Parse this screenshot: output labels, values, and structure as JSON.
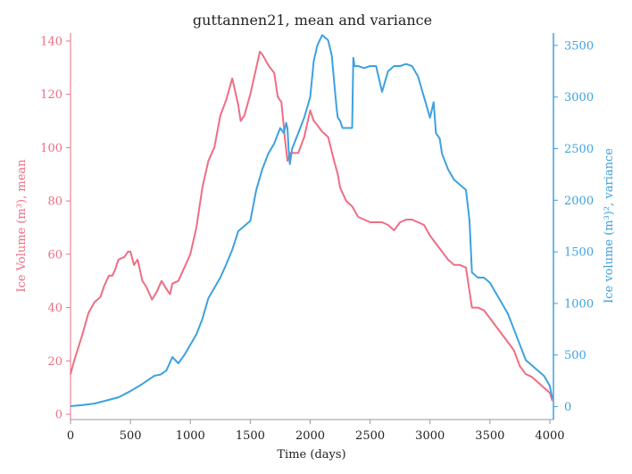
{
  "chart_data": {
    "type": "line",
    "title": "guttannen21, mean and variance",
    "xlabel": "Time (days)",
    "ylabel_left": "Ice Volume (m³), mean",
    "ylabel_right": "Ice volume (m³)², variance",
    "xlim": [
      0,
      4030
    ],
    "ylim_left": [
      -2,
      143
    ],
    "ylim_right": [
      -125,
      3620
    ],
    "x_ticks": [
      0,
      500,
      1000,
      1500,
      2000,
      2500,
      3000,
      3500,
      4000
    ],
    "y_ticks_left": [
      0,
      20,
      40,
      60,
      80,
      100,
      120,
      140
    ],
    "y_ticks_right": [
      0,
      500,
      1000,
      1500,
      2000,
      2500,
      3000,
      3500
    ],
    "grid": false,
    "colors": {
      "mean": "#ee6e84",
      "variance": "#3da1e0",
      "axis": "#999999",
      "text": "#222222"
    },
    "series": [
      {
        "axis": "left",
        "x": [
          0,
          30,
          100,
          150,
          200,
          250,
          280,
          320,
          350,
          370,
          400,
          450,
          480,
          500,
          530,
          560,
          600,
          630,
          680,
          720,
          760,
          800,
          830,
          850,
          900,
          950,
          1000,
          1050,
          1100,
          1150,
          1200,
          1250,
          1300,
          1350,
          1400,
          1420,
          1450,
          1500,
          1550,
          1580,
          1600,
          1650,
          1700,
          1730,
          1760,
          1790,
          1810,
          1830,
          1850,
          1900,
          1950,
          2000,
          2030,
          2050,
          2100,
          2150,
          2200,
          2230,
          2250,
          2300,
          2350,
          2400,
          2450,
          2500,
          2550,
          2600,
          2650,
          2700,
          2750,
          2800,
          2850,
          2900,
          2950,
          3000,
          3050,
          3100,
          3150,
          3200,
          3250,
          3300,
          3350,
          3400,
          3450,
          3500,
          3550,
          3600,
          3650,
          3700,
          3750,
          3800,
          3850,
          3900,
          3950,
          4000,
          4020
        ],
        "values": [
          15,
          20,
          30,
          38,
          42,
          44,
          48,
          52,
          52,
          54,
          58,
          59,
          61,
          61,
          56,
          58,
          50,
          48,
          43,
          46,
          50,
          47,
          45,
          49,
          50,
          55,
          60,
          70,
          85,
          95,
          100,
          112,
          118,
          126,
          116,
          110,
          112,
          120,
          130,
          136,
          135,
          131,
          128,
          119,
          117,
          103,
          95,
          98,
          98,
          98,
          104,
          114,
          110,
          109,
          106,
          104,
          95,
          90,
          85,
          80,
          78,
          74,
          73,
          72,
          72,
          72,
          71,
          69,
          72,
          73,
          73,
          72,
          71,
          67,
          64,
          61,
          58,
          56,
          56,
          55,
          40,
          40,
          39,
          36,
          33,
          30,
          27,
          24,
          18,
          15,
          14,
          12,
          10,
          8,
          5
        ]
      },
      {
        "axis": "right",
        "x": [
          0,
          100,
          200,
          300,
          400,
          500,
          600,
          700,
          750,
          800,
          850,
          900,
          950,
          1000,
          1050,
          1100,
          1150,
          1200,
          1250,
          1300,
          1350,
          1400,
          1450,
          1500,
          1550,
          1600,
          1650,
          1700,
          1750,
          1780,
          1800,
          1810,
          1820,
          1830,
          1850,
          1900,
          1950,
          2000,
          2030,
          2060,
          2100,
          2150,
          2180,
          2200,
          2220,
          2230,
          2250,
          2270,
          2300,
          2350,
          2360,
          2370,
          2400,
          2450,
          2500,
          2550,
          2600,
          2650,
          2700,
          2750,
          2800,
          2850,
          2900,
          2950,
          3000,
          3030,
          3050,
          3080,
          3100,
          3150,
          3200,
          3250,
          3300,
          3330,
          3350,
          3400,
          3450,
          3500,
          3550,
          3600,
          3650,
          3700,
          3750,
          3800,
          3850,
          3900,
          3950,
          4000,
          4020
        ],
        "values": [
          5,
          15,
          30,
          60,
          90,
          150,
          220,
          300,
          310,
          350,
          480,
          420,
          500,
          600,
          700,
          850,
          1050,
          1150,
          1250,
          1380,
          1520,
          1700,
          1750,
          1800,
          2100,
          2300,
          2450,
          2550,
          2700,
          2650,
          2750,
          2700,
          2500,
          2350,
          2500,
          2650,
          2800,
          3000,
          3350,
          3500,
          3600,
          3550,
          3400,
          3150,
          2900,
          2800,
          2770,
          2700,
          2700,
          2700,
          3380,
          3300,
          3300,
          3280,
          3300,
          3300,
          3050,
          3250,
          3300,
          3300,
          3320,
          3300,
          3200,
          3000,
          2800,
          2950,
          2650,
          2600,
          2450,
          2300,
          2200,
          2150,
          2100,
          1800,
          1300,
          1250,
          1250,
          1200,
          1100,
          1000,
          900,
          750,
          600,
          450,
          400,
          350,
          300,
          200,
          80
        ]
      }
    ]
  }
}
